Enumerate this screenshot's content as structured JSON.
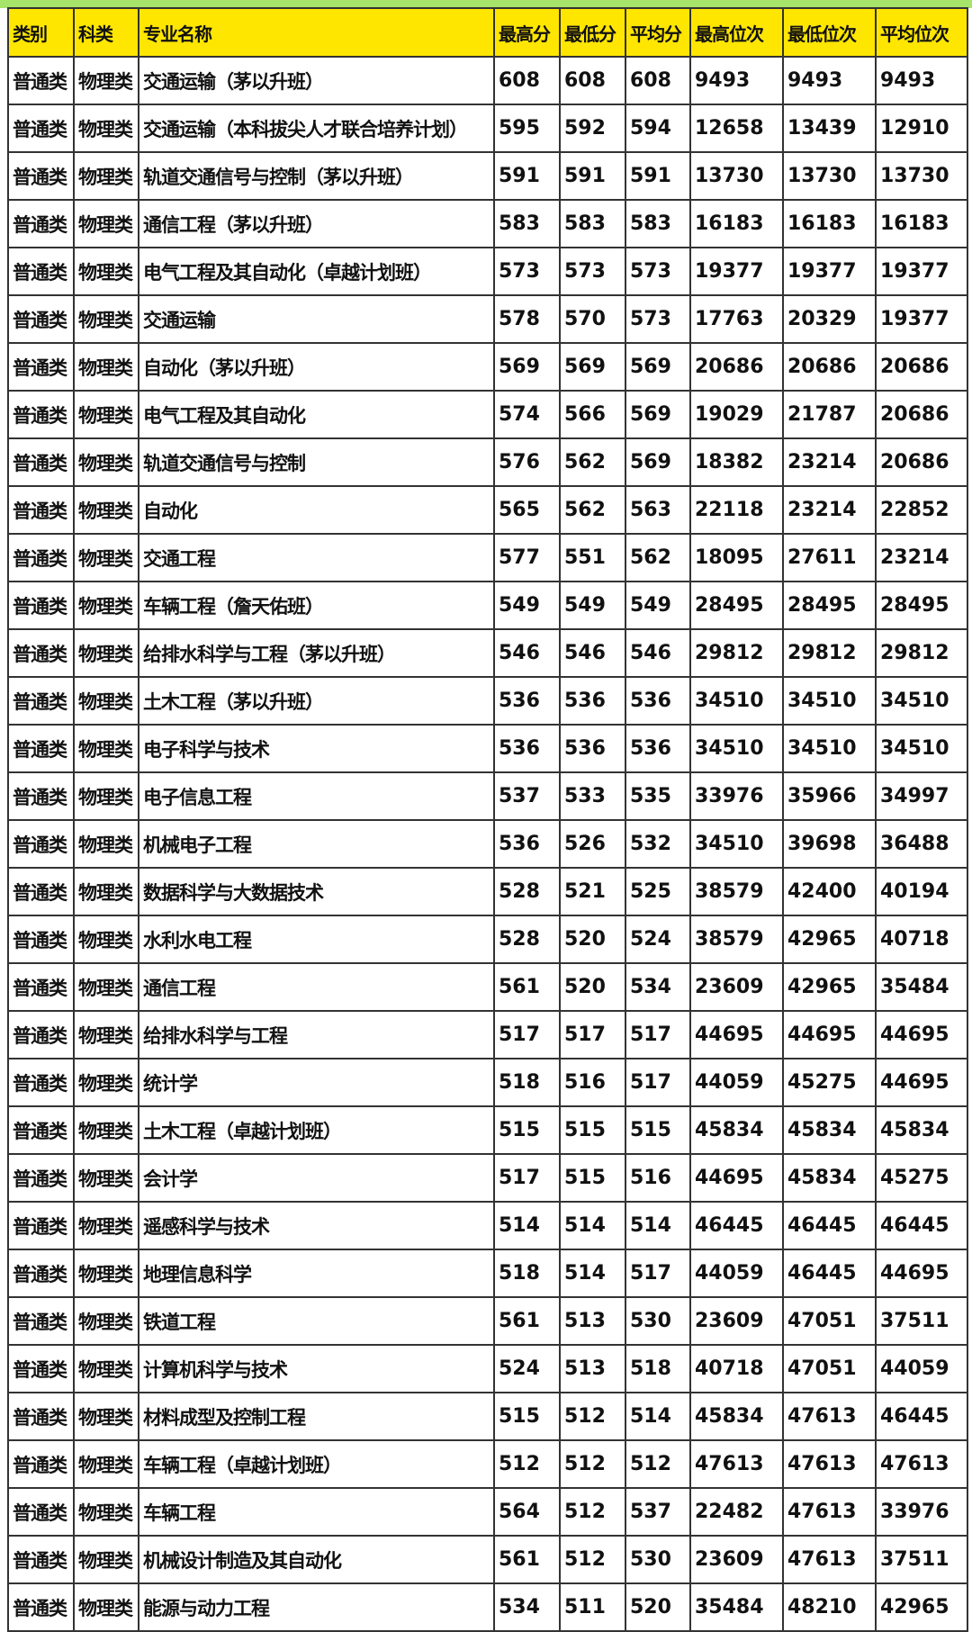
{
  "colors": {
    "header_bg": "#ffe600",
    "top_band": "#a6e46a"
  },
  "headers": [
    "类别",
    "科类",
    "专业名称",
    "最高分",
    "最低分",
    "平均分",
    "最高位次",
    "最低位次",
    "平均位次"
  ],
  "rows": [
    [
      "普通类",
      "物理类",
      "交通运输（茅以升班）",
      "608",
      "608",
      "608",
      "9493",
      "9493",
      "9493"
    ],
    [
      "普通类",
      "物理类",
      "交通运输（本科拔尖人才联合培养计划）",
      "595",
      "592",
      "594",
      "12658",
      "13439",
      "12910"
    ],
    [
      "普通类",
      "物理类",
      "轨道交通信号与控制（茅以升班）",
      "591",
      "591",
      "591",
      "13730",
      "13730",
      "13730"
    ],
    [
      "普通类",
      "物理类",
      "通信工程（茅以升班）",
      "583",
      "583",
      "583",
      "16183",
      "16183",
      "16183"
    ],
    [
      "普通类",
      "物理类",
      "电气工程及其自动化（卓越计划班）",
      "573",
      "573",
      "573",
      "19377",
      "19377",
      "19377"
    ],
    [
      "普通类",
      "物理类",
      "交通运输",
      "578",
      "570",
      "573",
      "17763",
      "20329",
      "19377"
    ],
    [
      "普通类",
      "物理类",
      "自动化（茅以升班）",
      "569",
      "569",
      "569",
      "20686",
      "20686",
      "20686"
    ],
    [
      "普通类",
      "物理类",
      "电气工程及其自动化",
      "574",
      "566",
      "569",
      "19029",
      "21787",
      "20686"
    ],
    [
      "普通类",
      "物理类",
      "轨道交通信号与控制",
      "576",
      "562",
      "569",
      "18382",
      "23214",
      "20686"
    ],
    [
      "普通类",
      "物理类",
      "自动化",
      "565",
      "562",
      "563",
      "22118",
      "23214",
      "22852"
    ],
    [
      "普通类",
      "物理类",
      "交通工程",
      "577",
      "551",
      "562",
      "18095",
      "27611",
      "23214"
    ],
    [
      "普通类",
      "物理类",
      "车辆工程（詹天佑班）",
      "549",
      "549",
      "549",
      "28495",
      "28495",
      "28495"
    ],
    [
      "普通类",
      "物理类",
      "给排水科学与工程（茅以升班）",
      "546",
      "546",
      "546",
      "29812",
      "29812",
      "29812"
    ],
    [
      "普通类",
      "物理类",
      "土木工程（茅以升班）",
      "536",
      "536",
      "536",
      "34510",
      "34510",
      "34510"
    ],
    [
      "普通类",
      "物理类",
      "电子科学与技术",
      "536",
      "536",
      "536",
      "34510",
      "34510",
      "34510"
    ],
    [
      "普通类",
      "物理类",
      "电子信息工程",
      "537",
      "533",
      "535",
      "33976",
      "35966",
      "34997"
    ],
    [
      "普通类",
      "物理类",
      "机械电子工程",
      "536",
      "526",
      "532",
      "34510",
      "39698",
      "36488"
    ],
    [
      "普通类",
      "物理类",
      "数据科学与大数据技术",
      "528",
      "521",
      "525",
      "38579",
      "42400",
      "40194"
    ],
    [
      "普通类",
      "物理类",
      "水利水电工程",
      "528",
      "520",
      "524",
      "38579",
      "42965",
      "40718"
    ],
    [
      "普通类",
      "物理类",
      "通信工程",
      "561",
      "520",
      "534",
      "23609",
      "42965",
      "35484"
    ],
    [
      "普通类",
      "物理类",
      "给排水科学与工程",
      "517",
      "517",
      "517",
      "44695",
      "44695",
      "44695"
    ],
    [
      "普通类",
      "物理类",
      "统计学",
      "518",
      "516",
      "517",
      "44059",
      "45275",
      "44695"
    ],
    [
      "普通类",
      "物理类",
      "土木工程（卓越计划班）",
      "515",
      "515",
      "515",
      "45834",
      "45834",
      "45834"
    ],
    [
      "普通类",
      "物理类",
      "会计学",
      "517",
      "515",
      "516",
      "44695",
      "45834",
      "45275"
    ],
    [
      "普通类",
      "物理类",
      "遥感科学与技术",
      "514",
      "514",
      "514",
      "46445",
      "46445",
      "46445"
    ],
    [
      "普通类",
      "物理类",
      "地理信息科学",
      "518",
      "514",
      "517",
      "44059",
      "46445",
      "44695"
    ],
    [
      "普通类",
      "物理类",
      "铁道工程",
      "561",
      "513",
      "530",
      "23609",
      "47051",
      "37511"
    ],
    [
      "普通类",
      "物理类",
      "计算机科学与技术",
      "524",
      "513",
      "518",
      "40718",
      "47051",
      "44059"
    ],
    [
      "普通类",
      "物理类",
      "材料成型及控制工程",
      "515",
      "512",
      "514",
      "45834",
      "47613",
      "46445"
    ],
    [
      "普通类",
      "物理类",
      "车辆工程（卓越计划班）",
      "512",
      "512",
      "512",
      "47613",
      "47613",
      "47613"
    ],
    [
      "普通类",
      "物理类",
      "车辆工程",
      "564",
      "512",
      "537",
      "22482",
      "47613",
      "33976"
    ],
    [
      "普通类",
      "物理类",
      "机械设计制造及其自动化",
      "561",
      "512",
      "530",
      "23609",
      "47613",
      "37511"
    ],
    [
      "普通类",
      "物理类",
      "能源与动力工程",
      "534",
      "511",
      "520",
      "35484",
      "48210",
      "42965"
    ]
  ]
}
